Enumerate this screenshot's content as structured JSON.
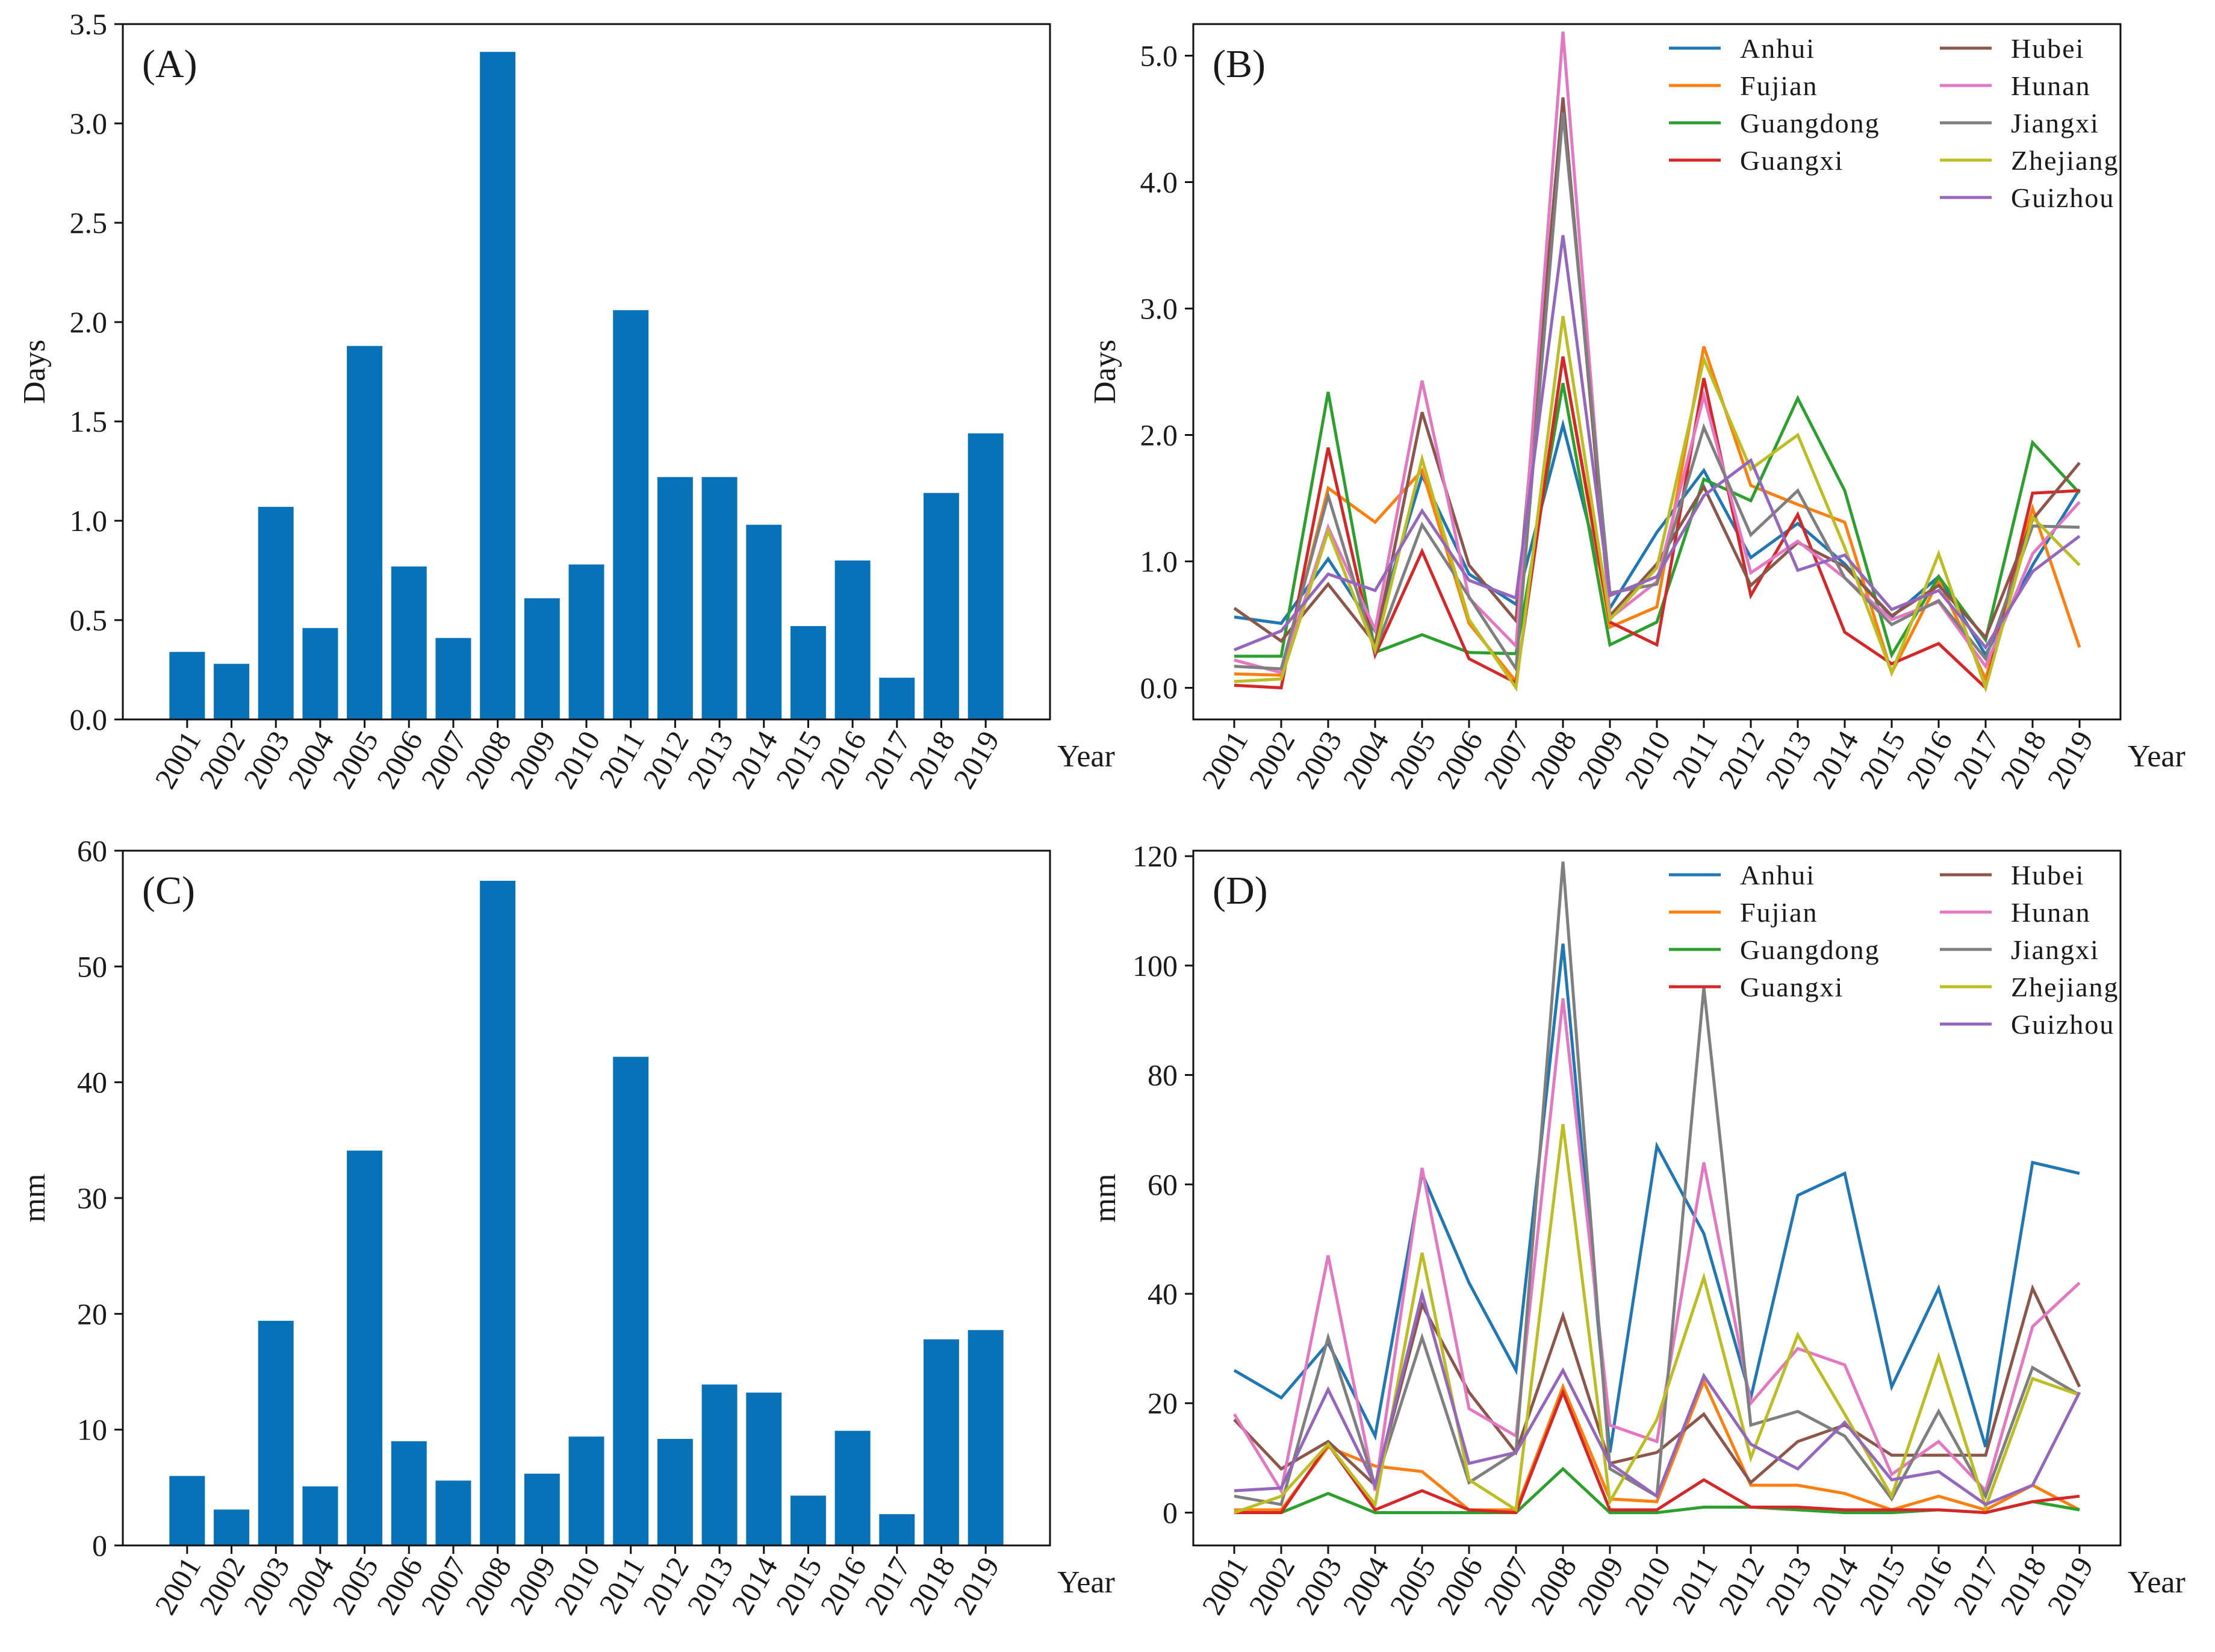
{
  "figure": {
    "years": [
      "2001",
      "2002",
      "2003",
      "2004",
      "2005",
      "2006",
      "2007",
      "2008",
      "2009",
      "2010",
      "2011",
      "2012",
      "2013",
      "2014",
      "2015",
      "2016",
      "2017",
      "2018",
      "2019"
    ],
    "provinces": [
      "Anhui",
      "Fujian",
      "Guangdong",
      "Guangxi",
      "Hubei",
      "Hunan",
      "Jiangxi",
      "Zhejiang",
      "Guizhou"
    ],
    "colors": {
      "bar": "#0872b8",
      "Anhui": "#1f77b4",
      "Fujian": "#ff7f0e",
      "Guangdong": "#2ca02c",
      "Guangxi": "#d62728",
      "Hubei": "#8c564b",
      "Hunan": "#e377c2",
      "Jiangxi": "#7f7f7f",
      "Zhejiang": "#bcbd22",
      "Guizhou": "#9467bd"
    }
  },
  "chart_data": [
    {
      "id": "A",
      "type": "bar",
      "label": "(A)",
      "xlabel": "Year",
      "ylabel": "Days",
      "ylim": [
        0,
        3.5
      ],
      "yticks": [
        "0.0",
        "0.5",
        "1.0",
        "1.5",
        "2.0",
        "2.5",
        "3.0",
        "3.5"
      ],
      "categories": [
        "2001",
        "2002",
        "2003",
        "2004",
        "2005",
        "2006",
        "2007",
        "2008",
        "2009",
        "2010",
        "2011",
        "2012",
        "2013",
        "2014",
        "2015",
        "2016",
        "2017",
        "2018",
        "2019"
      ],
      "values": [
        0.34,
        0.28,
        1.07,
        0.46,
        1.88,
        0.77,
        0.41,
        3.36,
        0.61,
        0.78,
        2.06,
        1.22,
        1.22,
        0.98,
        0.47,
        0.8,
        0.21,
        1.14,
        1.44
      ]
    },
    {
      "id": "B",
      "type": "line",
      "label": "(B)",
      "xlabel": "Year",
      "ylabel": "Days",
      "ylim": [
        -0.25,
        5.25
      ],
      "yticks": [
        "0.0",
        "1.0",
        "2.0",
        "3.0",
        "4.0",
        "5.0"
      ],
      "categories": [
        "2001",
        "2002",
        "2003",
        "2004",
        "2005",
        "2006",
        "2007",
        "2008",
        "2009",
        "2010",
        "2011",
        "2012",
        "2013",
        "2014",
        "2015",
        "2016",
        "2017",
        "2018",
        "2019"
      ],
      "series": [
        {
          "name": "Anhui",
          "values": [
            0.56,
            0.51,
            1.02,
            0.45,
            1.68,
            0.9,
            0.66,
            2.08,
            0.63,
            1.23,
            1.72,
            1.03,
            1.3,
            0.98,
            0.56,
            0.88,
            0.26,
            0.97,
            1.57
          ]
        },
        {
          "name": "Fujian",
          "values": [
            0.11,
            0.1,
            1.58,
            1.31,
            1.72,
            0.51,
            0.05,
            2.62,
            0.48,
            0.64,
            2.7,
            1.6,
            1.45,
            1.31,
            0.12,
            0.85,
            0.07,
            1.42,
            0.32
          ]
        },
        {
          "name": "Guangdong",
          "values": [
            0.25,
            0.25,
            2.34,
            0.28,
            0.42,
            0.28,
            0.27,
            2.41,
            0.34,
            0.52,
            1.65,
            1.48,
            2.29,
            1.56,
            0.26,
            0.88,
            0.38,
            1.94,
            1.54
          ]
        },
        {
          "name": "Guangxi",
          "values": [
            0.02,
            0.0,
            1.9,
            0.26,
            1.08,
            0.23,
            0.04,
            2.62,
            0.52,
            0.34,
            2.45,
            0.73,
            1.37,
            0.44,
            0.19,
            0.35,
            0.0,
            1.54,
            1.56
          ]
        },
        {
          "name": "Hubei",
          "values": [
            0.63,
            0.37,
            0.82,
            0.35,
            2.18,
            0.97,
            0.53,
            4.67,
            0.57,
            0.98,
            1.59,
            0.81,
            1.15,
            0.96,
            0.57,
            0.81,
            0.4,
            1.33,
            1.78
          ]
        },
        {
          "name": "Hunan",
          "values": [
            0.22,
            0.12,
            1.27,
            0.46,
            2.43,
            0.71,
            0.33,
            5.19,
            0.55,
            0.84,
            2.31,
            0.91,
            1.16,
            0.87,
            0.54,
            0.68,
            0.17,
            1.06,
            1.47
          ]
        },
        {
          "name": "Jiangxi",
          "values": [
            0.17,
            0.15,
            1.52,
            0.29,
            1.29,
            0.72,
            0.15,
            4.55,
            0.75,
            0.82,
            2.06,
            1.21,
            1.56,
            0.87,
            0.5,
            0.69,
            0.23,
            1.28,
            1.27
          ]
        },
        {
          "name": "Zhejiang",
          "values": [
            0.05,
            0.07,
            1.24,
            0.3,
            1.81,
            0.54,
            0.0,
            2.94,
            0.54,
            0.95,
            2.6,
            1.73,
            2.0,
            1.11,
            0.12,
            1.06,
            0.0,
            1.35,
            0.97
          ]
        },
        {
          "name": "Guizhou",
          "values": [
            0.3,
            0.45,
            0.9,
            0.77,
            1.4,
            0.85,
            0.71,
            3.58,
            0.73,
            0.88,
            1.52,
            1.8,
            0.93,
            1.05,
            0.62,
            0.77,
            0.32,
            0.92,
            1.2
          ]
        }
      ]
    },
    {
      "id": "C",
      "type": "bar",
      "label": "(C)",
      "xlabel": "Year",
      "ylabel": "mm",
      "ylim": [
        0,
        60
      ],
      "yticks": [
        "0",
        "10",
        "20",
        "30",
        "40",
        "50",
        "60"
      ],
      "categories": [
        "2001",
        "2002",
        "2003",
        "2004",
        "2005",
        "2006",
        "2007",
        "2008",
        "2009",
        "2010",
        "2011",
        "2012",
        "2013",
        "2014",
        "2015",
        "2016",
        "2017",
        "2018",
        "2019"
      ],
      "values": [
        6.0,
        3.1,
        19.4,
        5.1,
        34.1,
        9.0,
        5.6,
        57.4,
        6.2,
        9.4,
        42.2,
        9.2,
        13.9,
        13.2,
        4.3,
        9.9,
        2.7,
        17.8,
        18.6
      ]
    },
    {
      "id": "D",
      "type": "line",
      "label": "(D)",
      "xlabel": "Year",
      "ylabel": "mm",
      "ylim": [
        -6,
        121
      ],
      "yticks": [
        "0",
        "20",
        "40",
        "60",
        "80",
        "100",
        "120"
      ],
      "categories": [
        "2001",
        "2002",
        "2003",
        "2004",
        "2005",
        "2006",
        "2007",
        "2008",
        "2009",
        "2010",
        "2011",
        "2012",
        "2013",
        "2014",
        "2015",
        "2016",
        "2017",
        "2018",
        "2019"
      ],
      "series": [
        {
          "name": "Anhui",
          "values": [
            26,
            21,
            31,
            14,
            62,
            42,
            26,
            104,
            11,
            67,
            51,
            21,
            58,
            62,
            23,
            41,
            12,
            64,
            62
          ]
        },
        {
          "name": "Fujian",
          "values": [
            0.5,
            0.5,
            12,
            8.5,
            7.5,
            0.5,
            0.5,
            23,
            2.5,
            2,
            24,
            5,
            5,
            3.5,
            0.5,
            3,
            0.5,
            5,
            0.5
          ]
        },
        {
          "name": "Guangdong",
          "values": [
            0,
            0,
            3.5,
            0,
            0,
            0,
            0,
            8,
            0,
            0,
            1,
            1,
            0.5,
            0,
            0,
            0.5,
            0,
            2,
            0.5
          ]
        },
        {
          "name": "Guangxi",
          "values": [
            0,
            0,
            12.5,
            0.5,
            4,
            0.5,
            0,
            22,
            0.5,
            0.5,
            6,
            1,
            1,
            0.5,
            0.5,
            0.5,
            0,
            2,
            3
          ]
        },
        {
          "name": "Hubei",
          "values": [
            17,
            8,
            13,
            5,
            38,
            22,
            11,
            36,
            9,
            11,
            18,
            5.5,
            13,
            16,
            10.5,
            10.5,
            10.5,
            41,
            23
          ]
        },
        {
          "name": "Hunan",
          "values": [
            18,
            4,
            47,
            4,
            63,
            19,
            14,
            94,
            16,
            13,
            64,
            20,
            30,
            27,
            7,
            13,
            4,
            34,
            42
          ]
        },
        {
          "name": "Jiangxi",
          "values": [
            3,
            1.5,
            32,
            5,
            32,
            5.5,
            11,
            119,
            8,
            3,
            96,
            16,
            18.5,
            14,
            2.5,
            18.5,
            3,
            26.5,
            21.5
          ]
        },
        {
          "name": "Zhejiang",
          "values": [
            0,
            3,
            12.5,
            1.5,
            47.5,
            6,
            0.5,
            71,
            2,
            17,
            43,
            10,
            32.5,
            18,
            3,
            28.5,
            1,
            24.5,
            21.5
          ]
        },
        {
          "name": "Guizhou",
          "values": [
            4,
            4.5,
            22.5,
            5,
            40,
            9,
            11,
            26,
            9,
            3,
            25,
            12.5,
            8,
            16.5,
            6,
            7.5,
            1.5,
            5,
            22
          ]
        }
      ]
    }
  ]
}
